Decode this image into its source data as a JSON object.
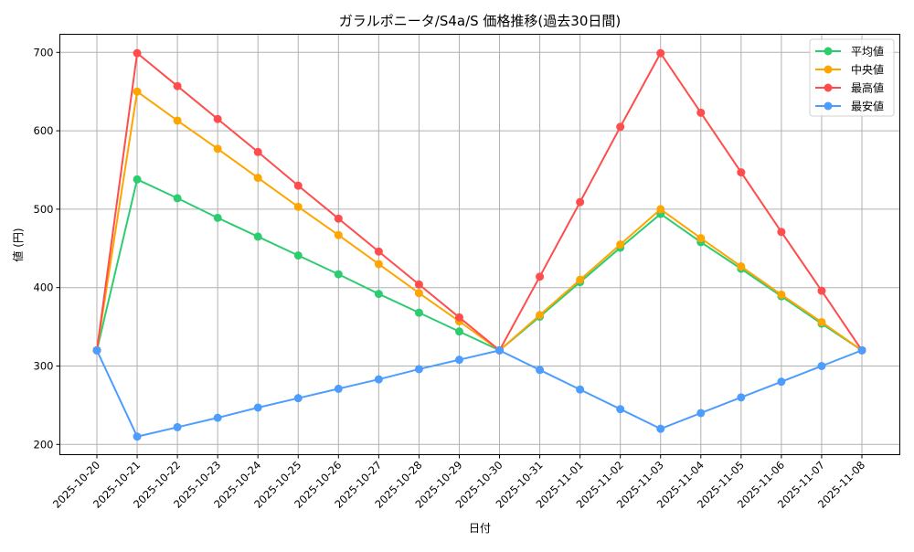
{
  "chart_data": {
    "type": "line",
    "title": "ガラルポニータ/S4a/S 価格推移(過去30日間)",
    "xlabel": "日付",
    "ylabel": "値 (円)",
    "ylim": [
      185,
      723
    ],
    "yticks": [
      200,
      300,
      400,
      500,
      600,
      700
    ],
    "grid": true,
    "legend_position": "upper right",
    "x": [
      "2025-10-20",
      "2025-10-21",
      "2025-10-22",
      "2025-10-23",
      "2025-10-24",
      "2025-10-25",
      "2025-10-26",
      "2025-10-27",
      "2025-10-28",
      "2025-10-29",
      "2025-10-30",
      "2025-10-31",
      "2025-11-01",
      "2025-11-02",
      "2025-11-03",
      "2025-11-04",
      "2025-11-05",
      "2025-11-06",
      "2025-11-07",
      "2025-11-08"
    ],
    "series": [
      {
        "name": "平均値",
        "color": "#2ecc71",
        "values": [
          320,
          538,
          514,
          489,
          465,
          441,
          417,
          392,
          368,
          344,
          320,
          363,
          407,
          451,
          494,
          458,
          424,
          389,
          354,
          320
        ]
      },
      {
        "name": "中央値",
        "color": "#ffa500",
        "values": [
          320,
          650,
          613,
          577,
          540,
          503,
          467,
          430,
          393,
          357,
          320,
          365,
          410,
          455,
          500,
          463,
          427,
          391,
          356,
          320
        ]
      },
      {
        "name": "最高値",
        "color": "#ff4d4d",
        "values": [
          320,
          699,
          657,
          615,
          573,
          530,
          488,
          446,
          404,
          362,
          320,
          414,
          509,
          605,
          699,
          623,
          547,
          471,
          396,
          320
        ]
      },
      {
        "name": "最安値",
        "color": "#4d9dff",
        "values": [
          320,
          210,
          222,
          234,
          247,
          259,
          271,
          283,
          296,
          308,
          320,
          295,
          270,
          245,
          220,
          240,
          260,
          280,
          300,
          320
        ]
      }
    ]
  }
}
